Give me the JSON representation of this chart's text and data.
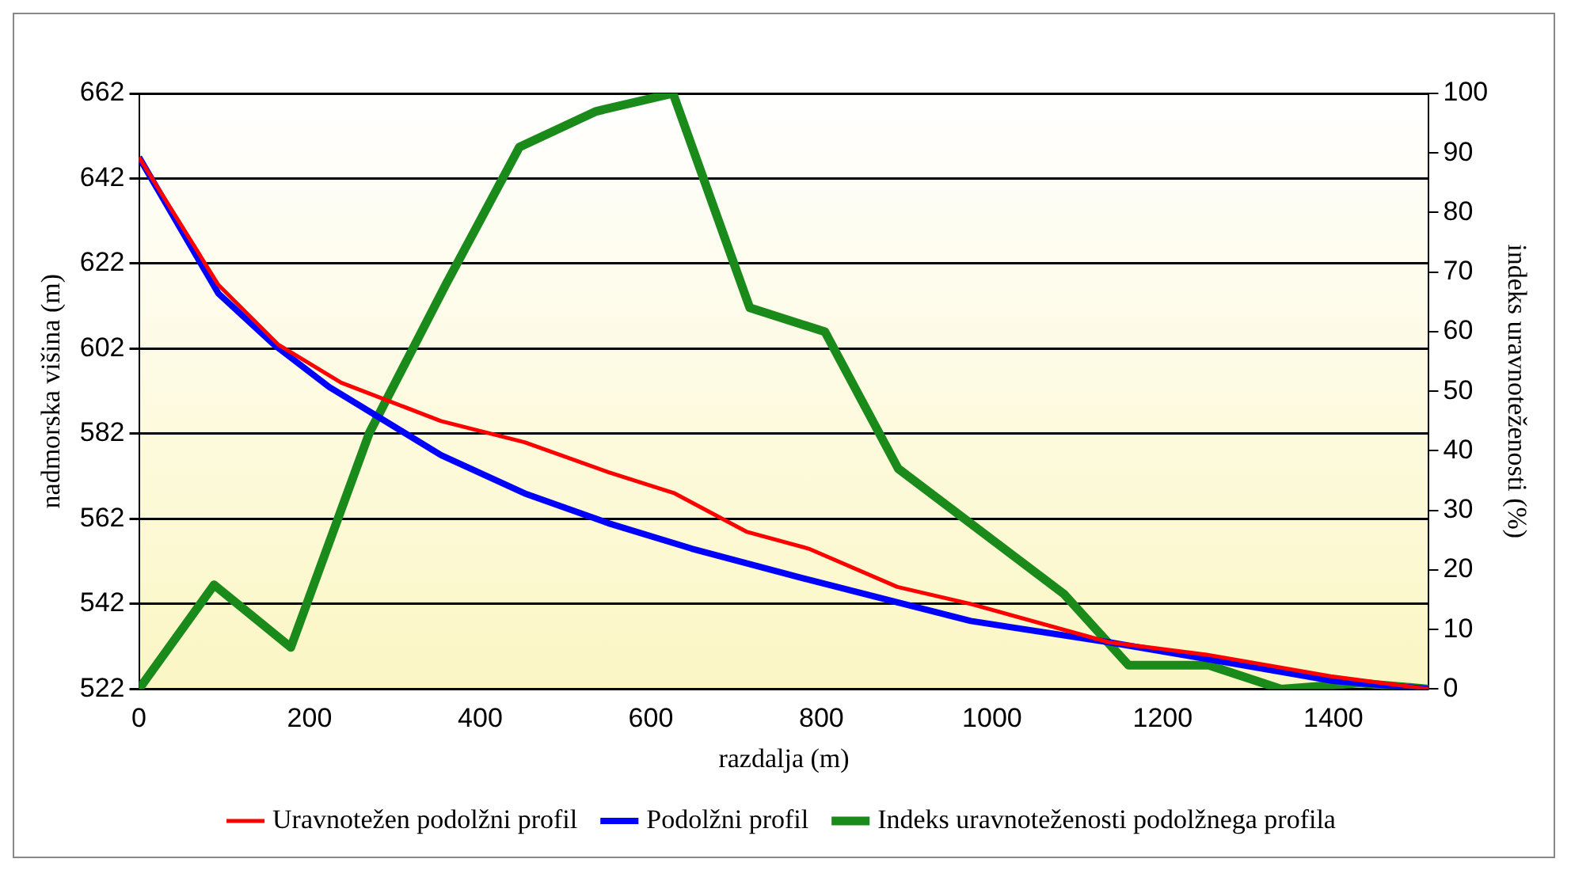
{
  "chart_data": {
    "type": "line",
    "xlabel": "razdalja (m)",
    "ylabel": "nadmorska višina (m)",
    "y2label": "indeks uravnoteženosti (%)",
    "xlim": [
      0,
      1512
    ],
    "xticks": [
      0,
      200,
      400,
      600,
      800,
      1000,
      1200,
      1400
    ],
    "ylim": [
      522,
      662
    ],
    "yticks": [
      522,
      542,
      562,
      582,
      602,
      622,
      642,
      662
    ],
    "y2lim": [
      0,
      100
    ],
    "y2ticks": [
      0,
      10,
      20,
      30,
      40,
      50,
      60,
      70,
      80,
      90,
      100
    ],
    "grid": "y",
    "legend": "bottom",
    "marker": "none",
    "line_style": "solid",
    "series": [
      {
        "name": "Uravnotežen podolžni profil",
        "color": "#ff0000",
        "x": [
          0,
          93,
          163,
          237,
          354,
          452,
          550,
          628,
          712,
          785,
          889,
          975,
          1137,
          1254,
          1397,
          1512
        ],
        "values": [
          647,
          617,
          603,
          594,
          585,
          580,
          573,
          568,
          559,
          555,
          546,
          542,
          533,
          530,
          525,
          522
        ]
      },
      {
        "name": "Podolžni profil",
        "color": "#0000ff",
        "x": [
          0,
          93,
          158,
          223,
          354,
          452,
          550,
          648,
          779,
          975,
          1137,
          1254,
          1397,
          1512
        ],
        "values": [
          647,
          615,
          603,
          593,
          577,
          568,
          561,
          555,
          548,
          538,
          533,
          529,
          524,
          522
        ]
      },
      {
        "name": "Indeks uravnoteženosti podolžnega profila",
        "color": "#1a8a1a",
        "axis": "y2",
        "x": [
          0,
          88,
          178,
          270,
          360,
          446,
          536,
          626,
          716,
          804,
          890,
          1084,
          1160,
          1254,
          1339,
          1431,
          1512
        ],
        "values": [
          0,
          17.5,
          7,
          43,
          68,
          91,
          97,
          100,
          64,
          60,
          37,
          16,
          4,
          4,
          0,
          1,
          0
        ]
      }
    ]
  }
}
